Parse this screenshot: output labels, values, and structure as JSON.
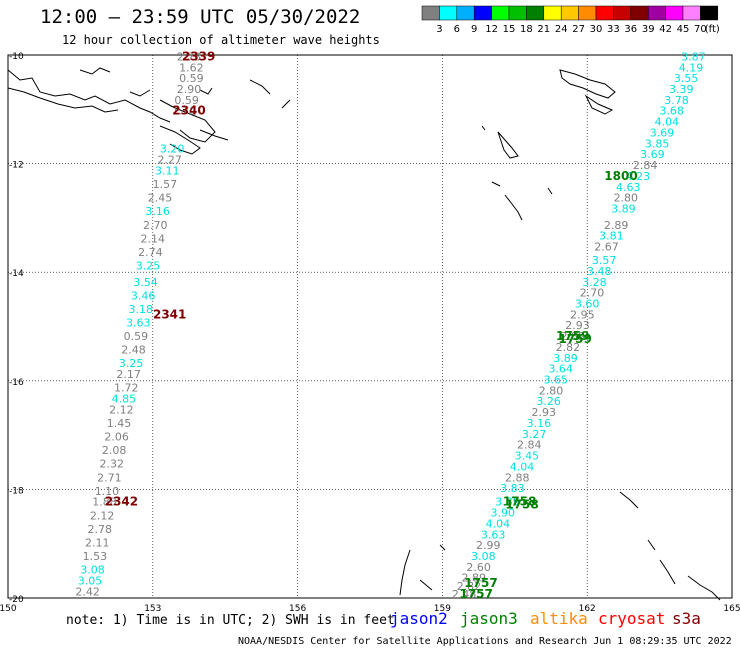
{
  "title": "12:00 — 23:59 UTC 05/30/2022",
  "subtitle": "12 hour collection of altimeter wave heights",
  "color_scale": {
    "unit": "(ft)",
    "labels": [
      "3",
      "6",
      "9",
      "12",
      "15",
      "18",
      "21",
      "24",
      "27",
      "30",
      "33",
      "36",
      "39",
      "42",
      "45",
      "70"
    ],
    "colors": [
      "#808080",
      "#00ffff",
      "#00b0ff",
      "#0000ff",
      "#00ff00",
      "#00c000",
      "#008000",
      "#ffff00",
      "#ffc800",
      "#ff8c00",
      "#ff0000",
      "#c80000",
      "#800000",
      "#a000a0",
      "#ff00ff",
      "#ff80ff",
      "#000000"
    ]
  },
  "axes": {
    "lon_labels": [
      "150",
      "153",
      "156",
      "159",
      "162",
      "165"
    ],
    "lat_labels": [
      "-10",
      "-12",
      "-14",
      "-16",
      "-18",
      "-20"
    ]
  },
  "colors": {
    "jason2": "#0000ff",
    "jason3": "#008000",
    "altika": "#ff8c00",
    "cryosat": "#ff0000",
    "s3a": "#800000",
    "low_wave": "#808080",
    "mid_wave": "#00e0e0",
    "time_label_west": "#800000",
    "time_label_east": "#008000"
  },
  "track_times": [
    {
      "text": "2339",
      "lon": 153.95,
      "lat": -10.1,
      "color": "#800000"
    },
    {
      "text": "2340",
      "lon": 153.75,
      "lat": -11.1,
      "color": "#800000"
    },
    {
      "text": "2341",
      "lon": 153.35,
      "lat": -14.85,
      "color": "#800000"
    },
    {
      "text": "2342",
      "lon": 152.35,
      "lat": -18.3,
      "color": "#800000"
    },
    {
      "text": "1800",
      "lon": 162.7,
      "lat": -12.3,
      "color": "#008000"
    },
    {
      "text": "1759",
      "lon": 161.7,
      "lat": -15.25,
      "color": "#008000"
    },
    {
      "text": "1759",
      "lon": 161.75,
      "lat": -15.3,
      "color": "#008000"
    },
    {
      "text": "1758",
      "lon": 160.6,
      "lat": -18.3,
      "color": "#008000"
    },
    {
      "text": "1758",
      "lon": 160.65,
      "lat": -18.35,
      "color": "#008000"
    },
    {
      "text": "1757",
      "lon": 159.8,
      "lat": -19.8,
      "color": "#008000"
    },
    {
      "text": "1757",
      "lon": 159.7,
      "lat": -20.0,
      "color": "#008000"
    }
  ],
  "west_track": [
    {
      "v": "2.73",
      "lon": 153.75,
      "lat": -10.1,
      "c": "g"
    },
    {
      "v": "1.62",
      "lon": 153.8,
      "lat": -10.3,
      "c": "g"
    },
    {
      "v": "0.59",
      "lon": 153.8,
      "lat": -10.5,
      "c": "g"
    },
    {
      "v": "2.90",
      "lon": 153.75,
      "lat": -10.7,
      "c": "g"
    },
    {
      "v": "0.59",
      "lon": 153.7,
      "lat": -10.9,
      "c": "g"
    },
    {
      "v": "1.79",
      "lon": 153.65,
      "lat": -11.1,
      "c": "g"
    },
    {
      "v": "3.20",
      "lon": 153.4,
      "lat": -11.8,
      "c": "c"
    },
    {
      "v": "2.27",
      "lon": 153.35,
      "lat": -12.0,
      "c": "g"
    },
    {
      "v": "3.11",
      "lon": 153.3,
      "lat": -12.2,
      "c": "c"
    },
    {
      "v": "1.57",
      "lon": 153.25,
      "lat": -12.45,
      "c": "g"
    },
    {
      "v": "2.45",
      "lon": 153.15,
      "lat": -12.7,
      "c": "g"
    },
    {
      "v": "3.16",
      "lon": 153.1,
      "lat": -12.95,
      "c": "c"
    },
    {
      "v": "2.70",
      "lon": 153.05,
      "lat": -13.2,
      "c": "g"
    },
    {
      "v": "2.14",
      "lon": 153.0,
      "lat": -13.45,
      "c": "g"
    },
    {
      "v": "2.74",
      "lon": 152.95,
      "lat": -13.7,
      "c": "g"
    },
    {
      "v": "3.25",
      "lon": 152.9,
      "lat": -13.95,
      "c": "c"
    },
    {
      "v": "3.54",
      "lon": 152.85,
      "lat": -14.25,
      "c": "c"
    },
    {
      "v": "3.46",
      "lon": 152.8,
      "lat": -14.5,
      "c": "c"
    },
    {
      "v": "3.18",
      "lon": 152.75,
      "lat": -14.75,
      "c": "c"
    },
    {
      "v": "3.63",
      "lon": 152.7,
      "lat": -15.0,
      "c": "c"
    },
    {
      "v": "0.59",
      "lon": 152.65,
      "lat": -15.25,
      "c": "g"
    },
    {
      "v": "2.48",
      "lon": 152.6,
      "lat": -15.5,
      "c": "g"
    },
    {
      "v": "3.25",
      "lon": 152.55,
      "lat": -15.75,
      "c": "c"
    },
    {
      "v": "2.17",
      "lon": 152.5,
      "lat": -15.95,
      "c": "g"
    },
    {
      "v": "1.72",
      "lon": 152.45,
      "lat": -16.2,
      "c": "g"
    },
    {
      "v": "4.85",
      "lon": 152.4,
      "lat": -16.4,
      "c": "c"
    },
    {
      "v": "2.12",
      "lon": 152.35,
      "lat": -16.6,
      "c": "g"
    },
    {
      "v": "1.45",
      "lon": 152.3,
      "lat": -16.85,
      "c": "g"
    },
    {
      "v": "2.06",
      "lon": 152.25,
      "lat": -17.1,
      "c": "g"
    },
    {
      "v": "2.08",
      "lon": 152.2,
      "lat": -17.35,
      "c": "g"
    },
    {
      "v": "2.32",
      "lon": 152.15,
      "lat": -17.6,
      "c": "g"
    },
    {
      "v": "2.71",
      "lon": 152.1,
      "lat": -17.85,
      "c": "g"
    },
    {
      "v": "1.10",
      "lon": 152.05,
      "lat": -18.1,
      "c": "g"
    },
    {
      "v": "1.88",
      "lon": 152.0,
      "lat": -18.3,
      "c": "g"
    },
    {
      "v": "2.12",
      "lon": 151.95,
      "lat": -18.55,
      "c": "g"
    },
    {
      "v": "2.78",
      "lon": 151.9,
      "lat": -18.8,
      "c": "g"
    },
    {
      "v": "2.11",
      "lon": 151.85,
      "lat": -19.05,
      "c": "g"
    },
    {
      "v": "1.53",
      "lon": 151.8,
      "lat": -19.3,
      "c": "g"
    },
    {
      "v": "3.08",
      "lon": 151.75,
      "lat": -19.55,
      "c": "c"
    },
    {
      "v": "3.05",
      "lon": 151.7,
      "lat": -19.75,
      "c": "c"
    },
    {
      "v": "2.42",
      "lon": 151.65,
      "lat": -19.95,
      "c": "g"
    }
  ],
  "east_track": [
    {
      "v": "3.87",
      "lon": 164.2,
      "lat": -10.1,
      "c": "c"
    },
    {
      "v": "4.19",
      "lon": 164.15,
      "lat": -10.3,
      "c": "c"
    },
    {
      "v": "3.55",
      "lon": 164.05,
      "lat": -10.5,
      "c": "c"
    },
    {
      "v": "3.39",
      "lon": 163.95,
      "lat": -10.7,
      "c": "c"
    },
    {
      "v": "3.78",
      "lon": 163.85,
      "lat": -10.9,
      "c": "c"
    },
    {
      "v": "3.68",
      "lon": 163.75,
      "lat": -11.1,
      "c": "c"
    },
    {
      "v": "4.04",
      "lon": 163.65,
      "lat": -11.3,
      "c": "c"
    },
    {
      "v": "3.69",
      "lon": 163.55,
      "lat": -11.5,
      "c": "c"
    },
    {
      "v": "3.85",
      "lon": 163.45,
      "lat": -11.7,
      "c": "c"
    },
    {
      "v": "3.69",
      "lon": 163.35,
      "lat": -11.9,
      "c": "c"
    },
    {
      "v": "2.84",
      "lon": 163.2,
      "lat": -12.1,
      "c": "g"
    },
    {
      "v": "4.23",
      "lon": 163.05,
      "lat": -12.3,
      "c": "c"
    },
    {
      "v": "4.63",
      "lon": 162.85,
      "lat": -12.5,
      "c": "c"
    },
    {
      "v": "2.80",
      "lon": 162.8,
      "lat": -12.7,
      "c": "g"
    },
    {
      "v": "3.89",
      "lon": 162.75,
      "lat": -12.9,
      "c": "c"
    },
    {
      "v": "2.89",
      "lon": 162.6,
      "lat": -13.2,
      "c": "g"
    },
    {
      "v": "3.81",
      "lon": 162.5,
      "lat": -13.4,
      "c": "c"
    },
    {
      "v": "2.67",
      "lon": 162.4,
      "lat": -13.6,
      "c": "g"
    },
    {
      "v": "3.57",
      "lon": 162.35,
      "lat": -13.85,
      "c": "c"
    },
    {
      "v": "3.48",
      "lon": 162.25,
      "lat": -14.05,
      "c": "c"
    },
    {
      "v": "3.28",
      "lon": 162.15,
      "lat": -14.25,
      "c": "c"
    },
    {
      "v": "2.70",
      "lon": 162.1,
      "lat": -14.45,
      "c": "g"
    },
    {
      "v": "3.60",
      "lon": 162.0,
      "lat": -14.65,
      "c": "c"
    },
    {
      "v": "2.95",
      "lon": 161.9,
      "lat": -14.85,
      "c": "g"
    },
    {
      "v": "2.93",
      "lon": 161.8,
      "lat": -15.05,
      "c": "g"
    },
    {
      "v": "2.89",
      "lon": 161.7,
      "lat": -15.25,
      "c": "g"
    },
    {
      "v": "2.82",
      "lon": 161.6,
      "lat": -15.45,
      "c": "g"
    },
    {
      "v": "3.89",
      "lon": 161.55,
      "lat": -15.65,
      "c": "c"
    },
    {
      "v": "3.64",
      "lon": 161.45,
      "lat": -15.85,
      "c": "c"
    },
    {
      "v": "3.65",
      "lon": 161.35,
      "lat": -16.05,
      "c": "c"
    },
    {
      "v": "2.80",
      "lon": 161.25,
      "lat": -16.25,
      "c": "g"
    },
    {
      "v": "3.26",
      "lon": 161.2,
      "lat": -16.45,
      "c": "c"
    },
    {
      "v": "2.93",
      "lon": 161.1,
      "lat": -16.65,
      "c": "g"
    },
    {
      "v": "3.16",
      "lon": 161.0,
      "lat": -16.85,
      "c": "c"
    },
    {
      "v": "3.27",
      "lon": 160.9,
      "lat": -17.05,
      "c": "c"
    },
    {
      "v": "2.84",
      "lon": 160.8,
      "lat": -17.25,
      "c": "g"
    },
    {
      "v": "3.45",
      "lon": 160.75,
      "lat": -17.45,
      "c": "c"
    },
    {
      "v": "4.04",
      "lon": 160.65,
      "lat": -17.65,
      "c": "c"
    },
    {
      "v": "2.88",
      "lon": 160.55,
      "lat": -17.85,
      "c": "g"
    },
    {
      "v": "3.83",
      "lon": 160.45,
      "lat": -18.05,
      "c": "c"
    },
    {
      "v": "3.89",
      "lon": 160.35,
      "lat": -18.3,
      "c": "c"
    },
    {
      "v": "3.90",
      "lon": 160.25,
      "lat": -18.5,
      "c": "c"
    },
    {
      "v": "4.04",
      "lon": 160.15,
      "lat": -18.7,
      "c": "c"
    },
    {
      "v": "3.63",
      "lon": 160.05,
      "lat": -18.9,
      "c": "c"
    },
    {
      "v": "2.99",
      "lon": 159.95,
      "lat": -19.1,
      "c": "g"
    },
    {
      "v": "3.08",
      "lon": 159.85,
      "lat": -19.3,
      "c": "c"
    },
    {
      "v": "2.60",
      "lon": 159.75,
      "lat": -19.5,
      "c": "g"
    },
    {
      "v": "2.89",
      "lon": 159.65,
      "lat": -19.7,
      "c": "g"
    },
    {
      "v": "2.82",
      "lon": 159.55,
      "lat": -19.85,
      "c": "g"
    },
    {
      "v": "2.48",
      "lon": 159.45,
      "lat": -20.0,
      "c": "g"
    }
  ],
  "note": "note: 1) Time is in UTC; 2) SWH is in feet",
  "legend": {
    "jason2": "jason2",
    "jason3": "jason3",
    "altika": "altika",
    "cryosat": "cryosat",
    "s3a": "s3a"
  },
  "credit": "NOAA/NESDIS Center for Satellite Applications and Research   Jun  1 08:29:35 UTC 2022"
}
